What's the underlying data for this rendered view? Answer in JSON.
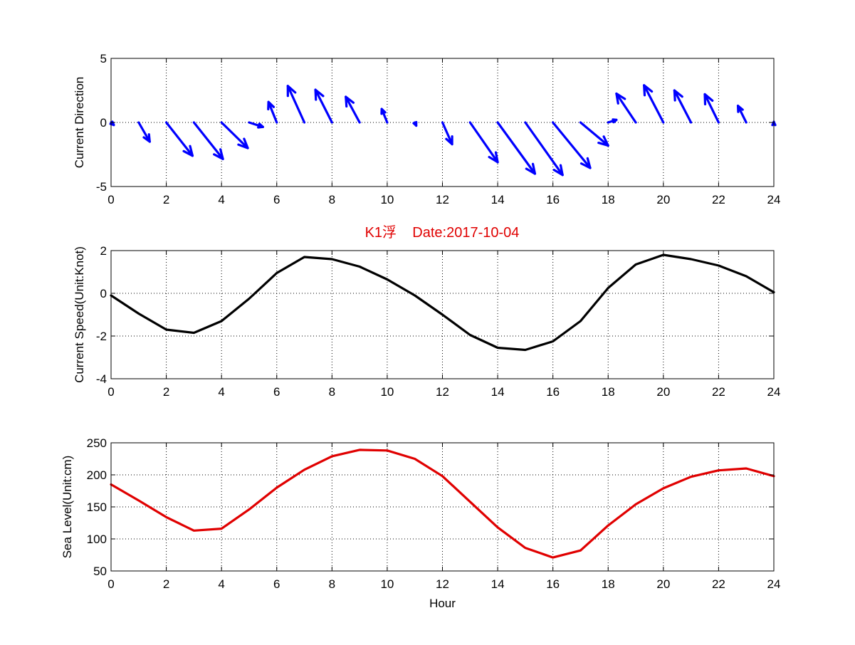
{
  "chart_data": [
    {
      "type": "quiver",
      "ylabel": "Current Direction",
      "xlabel": "",
      "xlim": [
        0,
        24
      ],
      "ylim": [
        -5,
        5
      ],
      "xticks": [
        "0",
        "2",
        "4",
        "6",
        "8",
        "10",
        "12",
        "14",
        "16",
        "18",
        "20",
        "22",
        "24"
      ],
      "yticks": [
        "5",
        "0",
        "-5"
      ],
      "grid": true,
      "color": "#0000ff",
      "vectors": [
        {
          "x": 0,
          "u": 0.1,
          "v": -0.2
        },
        {
          "x": 1,
          "u": 0.4,
          "v": -1.5
        },
        {
          "x": 2,
          "u": 0.95,
          "v": -2.6
        },
        {
          "x": 3,
          "u": 1.05,
          "v": -2.85
        },
        {
          "x": 4,
          "u": 0.95,
          "v": -2.0
        },
        {
          "x": 5,
          "u": 0.5,
          "v": -0.35
        },
        {
          "x": 6,
          "u": -0.3,
          "v": 1.6
        },
        {
          "x": 7,
          "u": -0.6,
          "v": 2.85
        },
        {
          "x": 8,
          "u": -0.6,
          "v": 2.55
        },
        {
          "x": 9,
          "u": -0.5,
          "v": 2.0
        },
        {
          "x": 10,
          "u": -0.2,
          "v": 1.05
        },
        {
          "x": 11,
          "u": 0.05,
          "v": -0.25
        },
        {
          "x": 12,
          "u": 0.35,
          "v": -1.7
        },
        {
          "x": 13,
          "u": 1.0,
          "v": -3.1
        },
        {
          "x": 14,
          "u": 1.35,
          "v": -4.0
        },
        {
          "x": 15,
          "u": 1.35,
          "v": -4.1
        },
        {
          "x": 16,
          "u": 1.35,
          "v": -3.55
        },
        {
          "x": 17,
          "u": 1.0,
          "v": -1.8
        },
        {
          "x": 18,
          "u": 0.3,
          "v": 0.2
        },
        {
          "x": 19,
          "u": -0.7,
          "v": 2.25
        },
        {
          "x": 20,
          "u": -0.7,
          "v": 2.9
        },
        {
          "x": 21,
          "u": -0.6,
          "v": 2.5
        },
        {
          "x": 22,
          "u": -0.5,
          "v": 2.2
        },
        {
          "x": 23,
          "u": -0.3,
          "v": 1.3
        },
        {
          "x": 24,
          "u": 0.0,
          "v": 0.05
        }
      ]
    },
    {
      "type": "line",
      "title": "K1浮    Date:2017-10-04",
      "ylabel": "Current Speed(Unit:Knot)",
      "xlabel": "",
      "xlim": [
        0,
        24
      ],
      "ylim": [
        -4,
        2
      ],
      "xticks": [
        "0",
        "2",
        "4",
        "6",
        "8",
        "10",
        "12",
        "14",
        "16",
        "18",
        "20",
        "22",
        "24"
      ],
      "yticks": [
        "2",
        "0",
        "-2",
        "-4"
      ],
      "grid": true,
      "color": "#000000",
      "x": [
        0,
        1,
        2,
        3,
        4,
        5,
        6,
        7,
        8,
        9,
        10,
        11,
        12,
        13,
        14,
        15,
        16,
        17,
        18,
        19,
        20,
        21,
        22,
        23,
        24
      ],
      "y": [
        -0.1,
        -0.95,
        -1.7,
        -1.85,
        -1.3,
        -0.25,
        0.95,
        1.7,
        1.6,
        1.25,
        0.65,
        -0.1,
        -1.0,
        -1.95,
        -2.55,
        -2.65,
        -2.25,
        -1.3,
        0.25,
        1.35,
        1.8,
        1.6,
        1.3,
        0.8,
        0.05
      ]
    },
    {
      "type": "line",
      "ylabel": "Sea Level(Unit:cm)",
      "xlabel": "Hour",
      "xlim": [
        0,
        24
      ],
      "ylim": [
        50,
        250
      ],
      "xticks": [
        "0",
        "2",
        "4",
        "6",
        "8",
        "10",
        "12",
        "14",
        "16",
        "18",
        "20",
        "22",
        "24"
      ],
      "yticks": [
        "250",
        "200",
        "150",
        "100",
        "50"
      ],
      "grid": true,
      "color": "#e00000",
      "x": [
        0,
        1,
        2,
        3,
        4,
        5,
        6,
        7,
        8,
        9,
        10,
        11,
        12,
        13,
        14,
        15,
        16,
        17,
        18,
        19,
        20,
        21,
        22,
        23,
        24
      ],
      "y": [
        185,
        160,
        134,
        113,
        116,
        146,
        180,
        208,
        229,
        239,
        238,
        225,
        198,
        158,
        118,
        86,
        71,
        82,
        121,
        154,
        179,
        197,
        207,
        210,
        198
      ]
    }
  ]
}
